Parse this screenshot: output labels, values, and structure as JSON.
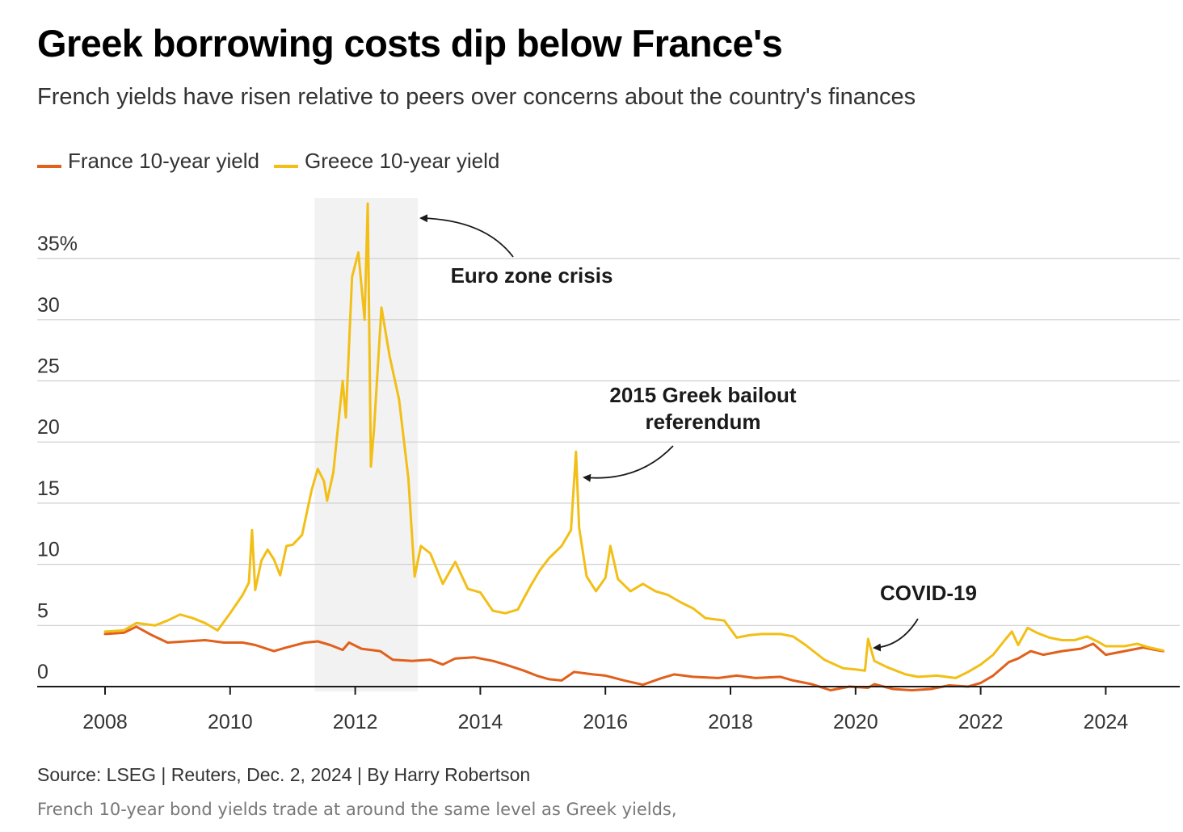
{
  "header": {
    "title": "Greek borrowing costs dip below France's",
    "subtitle": "French yields have risen relative to peers over concerns about the country's finances"
  },
  "legend": [
    {
      "label": "France 10-year yield",
      "color": "#e0601c"
    },
    {
      "label": "Greece 10-year yield",
      "color": "#f2bf17"
    }
  ],
  "footer": {
    "source": "Source: LSEG | Reuters, Dec. 2, 2024 | By Harry Robertson",
    "caption": "French 10-year bond yields trade at around the same level as Greek yields,"
  },
  "chart_data": {
    "type": "line",
    "title": "Greek borrowing costs dip below France's",
    "subtitle": "French yields have risen relative to peers over concerns about the country's finances",
    "y_unit": "%",
    "ylim": [
      0,
      40
    ],
    "xlim": [
      2007.5,
      2025.2
    ],
    "grid": true,
    "legend_position": "top-left",
    "y_ticks": [
      {
        "value": 0,
        "label": "0"
      },
      {
        "value": 5,
        "label": "5"
      },
      {
        "value": 10,
        "label": "10"
      },
      {
        "value": 15,
        "label": "15"
      },
      {
        "value": 20,
        "label": "20"
      },
      {
        "value": 25,
        "label": "25"
      },
      {
        "value": 30,
        "label": "30"
      },
      {
        "value": 35,
        "label": "35%"
      }
    ],
    "x_ticks": [
      {
        "value": 2008,
        "label": "2008"
      },
      {
        "value": 2010,
        "label": "2010"
      },
      {
        "value": 2012,
        "label": "2012"
      },
      {
        "value": 2014,
        "label": "2014"
      },
      {
        "value": 2016,
        "label": "2016"
      },
      {
        "value": 2018,
        "label": "2018"
      },
      {
        "value": 2020,
        "label": "2020"
      },
      {
        "value": 2022,
        "label": "2022"
      },
      {
        "value": 2024,
        "label": "2024"
      }
    ],
    "shaded_region": {
      "label": "Euro zone crisis",
      "x_start": 2011.35,
      "x_end": 2013.0
    },
    "annotations": [
      {
        "text": [
          "Euro zone crisis"
        ],
        "target": [
          2013.0,
          38.5
        ]
      },
      {
        "text": [
          "2015 Greek bailout",
          "referendum"
        ],
        "target": [
          2015.55,
          17.0
        ]
      },
      {
        "text": [
          "COVID-19"
        ],
        "target": [
          2020.2,
          2.9
        ]
      }
    ],
    "series": [
      {
        "name": "France 10-year yield",
        "color": "#e0601c",
        "points": [
          [
            2008.0,
            4.3
          ],
          [
            2008.3,
            4.4
          ],
          [
            2008.5,
            4.9
          ],
          [
            2008.75,
            4.2
          ],
          [
            2009.0,
            3.6
          ],
          [
            2009.3,
            3.7
          ],
          [
            2009.6,
            3.8
          ],
          [
            2009.9,
            3.6
          ],
          [
            2010.2,
            3.6
          ],
          [
            2010.4,
            3.4
          ],
          [
            2010.7,
            2.9
          ],
          [
            2010.9,
            3.2
          ],
          [
            2011.2,
            3.6
          ],
          [
            2011.4,
            3.7
          ],
          [
            2011.6,
            3.4
          ],
          [
            2011.8,
            3.0
          ],
          [
            2011.9,
            3.6
          ],
          [
            2012.1,
            3.1
          ],
          [
            2012.4,
            2.9
          ],
          [
            2012.6,
            2.2
          ],
          [
            2012.9,
            2.1
          ],
          [
            2013.2,
            2.2
          ],
          [
            2013.4,
            1.8
          ],
          [
            2013.6,
            2.3
          ],
          [
            2013.9,
            2.4
          ],
          [
            2014.2,
            2.1
          ],
          [
            2014.4,
            1.8
          ],
          [
            2014.7,
            1.3
          ],
          [
            2014.9,
            0.9
          ],
          [
            2015.1,
            0.6
          ],
          [
            2015.3,
            0.5
          ],
          [
            2015.5,
            1.2
          ],
          [
            2015.8,
            1.0
          ],
          [
            2016.0,
            0.9
          ],
          [
            2016.3,
            0.5
          ],
          [
            2016.6,
            0.15
          ],
          [
            2016.9,
            0.7
          ],
          [
            2017.1,
            1.0
          ],
          [
            2017.4,
            0.8
          ],
          [
            2017.8,
            0.7
          ],
          [
            2018.1,
            0.9
          ],
          [
            2018.4,
            0.7
          ],
          [
            2018.8,
            0.8
          ],
          [
            2019.0,
            0.5
          ],
          [
            2019.3,
            0.2
          ],
          [
            2019.6,
            -0.3
          ],
          [
            2019.9,
            0.0
          ],
          [
            2020.2,
            -0.1
          ],
          [
            2020.3,
            0.2
          ],
          [
            2020.6,
            -0.2
          ],
          [
            2020.9,
            -0.3
          ],
          [
            2021.2,
            -0.2
          ],
          [
            2021.5,
            0.1
          ],
          [
            2021.8,
            0.0
          ],
          [
            2022.0,
            0.3
          ],
          [
            2022.2,
            0.9
          ],
          [
            2022.45,
            2.0
          ],
          [
            2022.6,
            2.3
          ],
          [
            2022.8,
            2.9
          ],
          [
            2023.0,
            2.6
          ],
          [
            2023.3,
            2.9
          ],
          [
            2023.6,
            3.1
          ],
          [
            2023.8,
            3.5
          ],
          [
            2024.0,
            2.6
          ],
          [
            2024.3,
            2.9
          ],
          [
            2024.6,
            3.2
          ],
          [
            2024.8,
            3.0
          ],
          [
            2024.92,
            2.9
          ]
        ]
      },
      {
        "name": "Greece 10-year yield",
        "color": "#f2bf17",
        "points": [
          [
            2008.0,
            4.5
          ],
          [
            2008.3,
            4.6
          ],
          [
            2008.5,
            5.2
          ],
          [
            2008.8,
            5.0
          ],
          [
            2009.0,
            5.4
          ],
          [
            2009.2,
            5.9
          ],
          [
            2009.4,
            5.6
          ],
          [
            2009.6,
            5.2
          ],
          [
            2009.8,
            4.6
          ],
          [
            2010.0,
            6.0
          ],
          [
            2010.2,
            7.5
          ],
          [
            2010.3,
            8.5
          ],
          [
            2010.35,
            12.8
          ],
          [
            2010.4,
            7.9
          ],
          [
            2010.5,
            10.3
          ],
          [
            2010.6,
            11.2
          ],
          [
            2010.7,
            10.4
          ],
          [
            2010.8,
            9.1
          ],
          [
            2010.9,
            11.5
          ],
          [
            2011.0,
            11.6
          ],
          [
            2011.15,
            12.4
          ],
          [
            2011.3,
            16.0
          ],
          [
            2011.4,
            17.8
          ],
          [
            2011.5,
            16.8
          ],
          [
            2011.55,
            15.2
          ],
          [
            2011.65,
            17.5
          ],
          [
            2011.8,
            25.0
          ],
          [
            2011.85,
            22.0
          ],
          [
            2011.95,
            33.5
          ],
          [
            2012.05,
            35.5
          ],
          [
            2012.15,
            30.0
          ],
          [
            2012.2,
            39.5
          ],
          [
            2012.25,
            18.0
          ],
          [
            2012.3,
            21.0
          ],
          [
            2012.42,
            31.0
          ],
          [
            2012.55,
            27.0
          ],
          [
            2012.7,
            23.5
          ],
          [
            2012.85,
            17.0
          ],
          [
            2012.95,
            9.0
          ],
          [
            2013.05,
            11.5
          ],
          [
            2013.2,
            10.9
          ],
          [
            2013.4,
            8.4
          ],
          [
            2013.6,
            10.2
          ],
          [
            2013.8,
            8.0
          ],
          [
            2014.0,
            7.7
          ],
          [
            2014.2,
            6.2
          ],
          [
            2014.4,
            6.0
          ],
          [
            2014.6,
            6.3
          ],
          [
            2014.8,
            8.2
          ],
          [
            2014.95,
            9.5
          ],
          [
            2015.1,
            10.5
          ],
          [
            2015.3,
            11.5
          ],
          [
            2015.45,
            12.8
          ],
          [
            2015.53,
            19.2
          ],
          [
            2015.58,
            13.0
          ],
          [
            2015.7,
            9.0
          ],
          [
            2015.85,
            7.8
          ],
          [
            2016.0,
            8.9
          ],
          [
            2016.08,
            11.5
          ],
          [
            2016.2,
            8.8
          ],
          [
            2016.4,
            7.8
          ],
          [
            2016.6,
            8.4
          ],
          [
            2016.8,
            7.8
          ],
          [
            2017.0,
            7.5
          ],
          [
            2017.2,
            6.9
          ],
          [
            2017.4,
            6.4
          ],
          [
            2017.6,
            5.6
          ],
          [
            2017.9,
            5.4
          ],
          [
            2018.1,
            4.0
          ],
          [
            2018.3,
            4.2
          ],
          [
            2018.5,
            4.3
          ],
          [
            2018.8,
            4.3
          ],
          [
            2019.0,
            4.1
          ],
          [
            2019.2,
            3.4
          ],
          [
            2019.5,
            2.2
          ],
          [
            2019.8,
            1.5
          ],
          [
            2020.0,
            1.4
          ],
          [
            2020.15,
            1.3
          ],
          [
            2020.2,
            3.9
          ],
          [
            2020.3,
            2.1
          ],
          [
            2020.5,
            1.6
          ],
          [
            2020.8,
            1.0
          ],
          [
            2021.0,
            0.8
          ],
          [
            2021.3,
            0.9
          ],
          [
            2021.6,
            0.7
          ],
          [
            2021.8,
            1.2
          ],
          [
            2022.0,
            1.8
          ],
          [
            2022.2,
            2.6
          ],
          [
            2022.4,
            3.9
          ],
          [
            2022.5,
            4.5
          ],
          [
            2022.6,
            3.4
          ],
          [
            2022.75,
            4.8
          ],
          [
            2022.9,
            4.4
          ],
          [
            2023.1,
            4.0
          ],
          [
            2023.3,
            3.8
          ],
          [
            2023.5,
            3.8
          ],
          [
            2023.7,
            4.1
          ],
          [
            2023.9,
            3.6
          ],
          [
            2024.0,
            3.3
          ],
          [
            2024.3,
            3.3
          ],
          [
            2024.5,
            3.5
          ],
          [
            2024.7,
            3.2
          ],
          [
            2024.92,
            2.95
          ]
        ]
      }
    ]
  }
}
